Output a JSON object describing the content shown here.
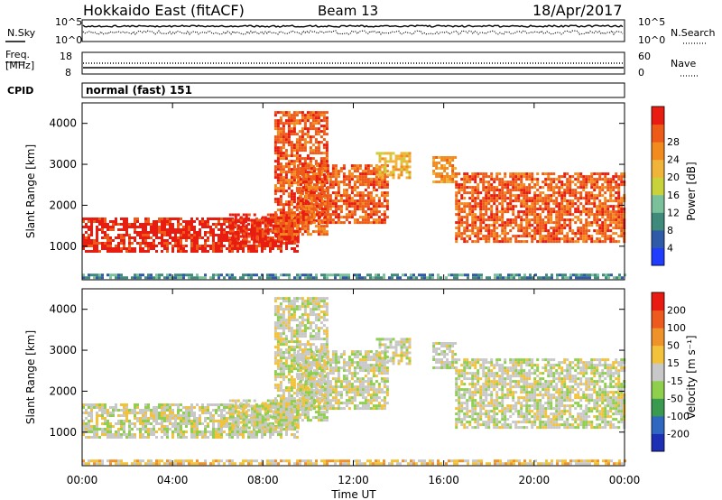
{
  "header": {
    "station": "Hokkaido East (fitACF)",
    "beam": "Beam 13",
    "date": "18/Apr/2017",
    "cpid_label": "CPID",
    "cpid_value": "normal (fast) 151"
  },
  "noise_panel": {
    "left_label": "N.Sky",
    "right_label": "N.Search",
    "ticks_left": [
      "10^5",
      "10^0"
    ],
    "ticks_right": [
      "10^5",
      "10^0"
    ]
  },
  "freq_panel": {
    "left_label_line1": "Freq.",
    "left_label_line2": "[MHz]",
    "right_label": "Nave",
    "ticks_left": [
      "18",
      "8"
    ],
    "ticks_right": [
      "60",
      "0"
    ]
  },
  "x_axis": {
    "label": "Time UT",
    "ticks": [
      "00:00",
      "04:00",
      "08:00",
      "12:00",
      "16:00",
      "20:00",
      "00:00"
    ],
    "range_hours": [
      0,
      24
    ]
  },
  "colors": {
    "power": [
      "#1f3cff",
      "#2f5aa8",
      "#3f8a7a",
      "#7ac09a",
      "#c8d23a",
      "#f0b43a",
      "#f28a1e",
      "#ee5a18",
      "#e81c10"
    ],
    "velocity": [
      "#1c2fb5",
      "#2f68c0",
      "#3a9a50",
      "#8ecf4c",
      "#c8c8c8",
      "#f2c23a",
      "#f0922a",
      "#ee5a1e",
      "#e81a12"
    ],
    "background_echo_gray": "#c8c8c8"
  },
  "chart_data": [
    {
      "type": "heatmap",
      "name": "Power",
      "title": "",
      "xlabel": "",
      "ylabel": "Slant Range [km]",
      "xlim": [
        0,
        24
      ],
      "ylim": [
        180,
        4500
      ],
      "yticks": [
        1000,
        2000,
        3000,
        4000
      ],
      "colorbar": {
        "label": "Power [dB]",
        "range": [
          0,
          30
        ],
        "ticks": [
          "4",
          "8",
          "12",
          "16",
          "20",
          "24",
          "28"
        ]
      },
      "echo_regions": [
        {
          "t": [
            0,
            9.5
          ],
          "r": [
            900,
            1700
          ],
          "level": 8
        },
        {
          "t": [
            6.5,
            9.5
          ],
          "r": [
            1100,
            1800
          ],
          "level": 8
        },
        {
          "t": [
            8.5,
            10.8
          ],
          "r": [
            1300,
            4300
          ],
          "level": 7
        },
        {
          "t": [
            9.5,
            13.5
          ],
          "r": [
            1600,
            3000
          ],
          "level": 7
        },
        {
          "t": [
            13.0,
            14.5
          ],
          "r": [
            2700,
            3300
          ],
          "level": 5
        },
        {
          "t": [
            15.5,
            16.5
          ],
          "r": [
            2600,
            3200
          ],
          "level": 6
        },
        {
          "t": [
            16.5,
            24
          ],
          "r": [
            1100,
            2800
          ],
          "level": 7
        },
        {
          "t": [
            0,
            24
          ],
          "r": [
            200,
            330
          ],
          "level": 2
        }
      ]
    },
    {
      "type": "heatmap",
      "name": "Velocity",
      "title": "",
      "xlabel": "Time UT",
      "ylabel": "Slant Range [km]",
      "xlim": [
        0,
        24
      ],
      "ylim": [
        180,
        4500
      ],
      "yticks": [
        1000,
        2000,
        3000,
        4000
      ],
      "colorbar": {
        "label": "Velocity [m s⁻¹]",
        "range": [
          -250,
          250
        ],
        "ticks": [
          "200",
          "100",
          "50",
          "15",
          "-15",
          "-50",
          "-100",
          "-200"
        ]
      },
      "echo_regions": [
        {
          "t": [
            0,
            9.5
          ],
          "r": [
            900,
            1700
          ],
          "level": 4
        },
        {
          "t": [
            6.5,
            9.5
          ],
          "r": [
            1100,
            1800
          ],
          "level": 4
        },
        {
          "t": [
            8.5,
            10.8
          ],
          "r": [
            1300,
            4300
          ],
          "level": 4
        },
        {
          "t": [
            9.5,
            13.5
          ],
          "r": [
            1600,
            3000
          ],
          "level": 4
        },
        {
          "t": [
            13.0,
            14.5
          ],
          "r": [
            2700,
            3300
          ],
          "level": 4
        },
        {
          "t": [
            15.5,
            16.5
          ],
          "r": [
            2600,
            3200
          ],
          "level": 4
        },
        {
          "t": [
            16.5,
            24
          ],
          "r": [
            1100,
            2800
          ],
          "level": 4
        },
        {
          "t": [
            0,
            24
          ],
          "r": [
            200,
            330
          ],
          "level": 5
        }
      ]
    }
  ]
}
